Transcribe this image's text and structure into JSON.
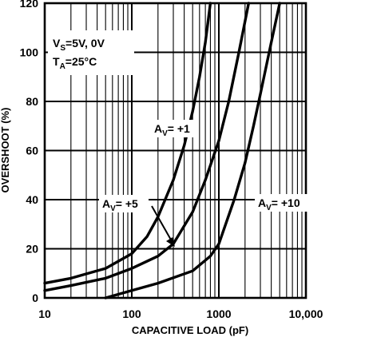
{
  "chart_data": {
    "type": "line",
    "title": "",
    "xlabel": "CAPACITIVE LOAD (pF)",
    "ylabel": "OVERSHOOT (%)",
    "x_scale": "log",
    "xlim": [
      10,
      10000
    ],
    "ylim": [
      0,
      120
    ],
    "x_tick_labels": [
      "10",
      "100",
      "1000",
      "10,000"
    ],
    "x_tick_values": [
      10,
      100,
      1000,
      10000
    ],
    "y_tick_labels": [
      "0",
      "20",
      "40",
      "60",
      "80",
      "100",
      "120"
    ],
    "y_tick_values": [
      0,
      20,
      40,
      60,
      80,
      100,
      120
    ],
    "grid": true,
    "grid_minor_x": true,
    "conditions": {
      "line1_prefix": "V",
      "line1_sub": "S",
      "line1_rest": "=5V, 0V",
      "line2_prefix": "T",
      "line2_sub": "A",
      "line2_rest": "=25°C"
    },
    "series": [
      {
        "label_prefix": "A",
        "label_sub": "V",
        "label_rest": "= +1",
        "x": [
          10,
          20,
          50,
          100,
          150,
          200,
          300,
          400,
          500,
          600,
          700,
          800
        ],
        "y": [
          6,
          8,
          12,
          18,
          25,
          33,
          48,
          62,
          76,
          90,
          104,
          120
        ]
      },
      {
        "label_prefix": "A",
        "label_sub": "V",
        "label_rest": "= +5",
        "x": [
          10,
          20,
          50,
          100,
          200,
          300,
          500,
          700,
          1000,
          1300,
          1700,
          2200
        ],
        "y": [
          3,
          5,
          8,
          12,
          17,
          22,
          35,
          48,
          64,
          80,
          100,
          120
        ]
      },
      {
        "label_prefix": "A",
        "label_sub": "V",
        "label_rest": "= +10",
        "x": [
          50,
          100,
          200,
          500,
          800,
          1000,
          1500,
          2000,
          2500,
          3000,
          4000,
          5000
        ],
        "y": [
          0,
          3,
          6,
          11,
          17,
          22,
          40,
          55,
          70,
          83,
          104,
          120
        ]
      }
    ],
    "colors": {
      "line": "#000000",
      "grid": "#000000",
      "background": "#ffffff"
    }
  }
}
